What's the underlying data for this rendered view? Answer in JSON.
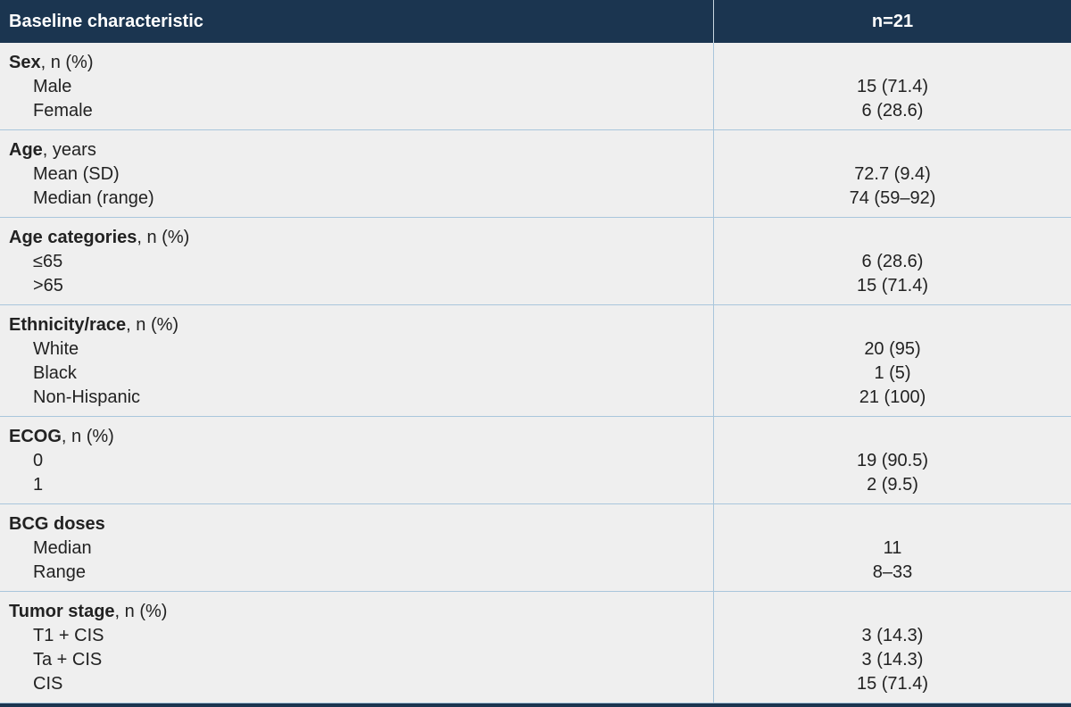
{
  "table": {
    "header": [
      "Baseline characteristic",
      "n=21"
    ],
    "groups": [
      {
        "title": "Sex",
        "unit": ", n (%)",
        "rows": [
          [
            "Male",
            "15 (71.4)"
          ],
          [
            "Female",
            "6 (28.6)"
          ]
        ]
      },
      {
        "title": "Age",
        "unit": ", years",
        "rows": [
          [
            "Mean (SD)",
            "72.7 (9.4)"
          ],
          [
            "Median (range)",
            "74 (59–92)"
          ]
        ]
      },
      {
        "title": "Age categories",
        "unit": ", n (%)",
        "rows": [
          [
            "≤65",
            "6 (28.6)"
          ],
          [
            ">65",
            "15 (71.4)"
          ]
        ]
      },
      {
        "title": "Ethnicity/race",
        "unit": ", n (%)",
        "rows": [
          [
            "White",
            "20 (95)"
          ],
          [
            "Black",
            "1 (5)"
          ],
          [
            "Non-Hispanic",
            "21 (100)"
          ]
        ]
      },
      {
        "title": "ECOG",
        "unit": ", n (%)",
        "rows": [
          [
            "0",
            "19 (90.5)"
          ],
          [
            "1",
            "2 (9.5)"
          ]
        ]
      },
      {
        "title": "BCG doses",
        "rows": [
          [
            "Median",
            "11"
          ],
          [
            "Range",
            "8–33"
          ]
        ]
      },
      {
        "title": "Tumor stage",
        "unit": ", n (%)",
        "rows": [
          [
            "T1 + CIS",
            "3 (14.3)"
          ],
          [
            "Ta + CIS",
            "3 (14.3)"
          ],
          [
            "CIS",
            "15 (71.4)"
          ]
        ]
      }
    ]
  }
}
